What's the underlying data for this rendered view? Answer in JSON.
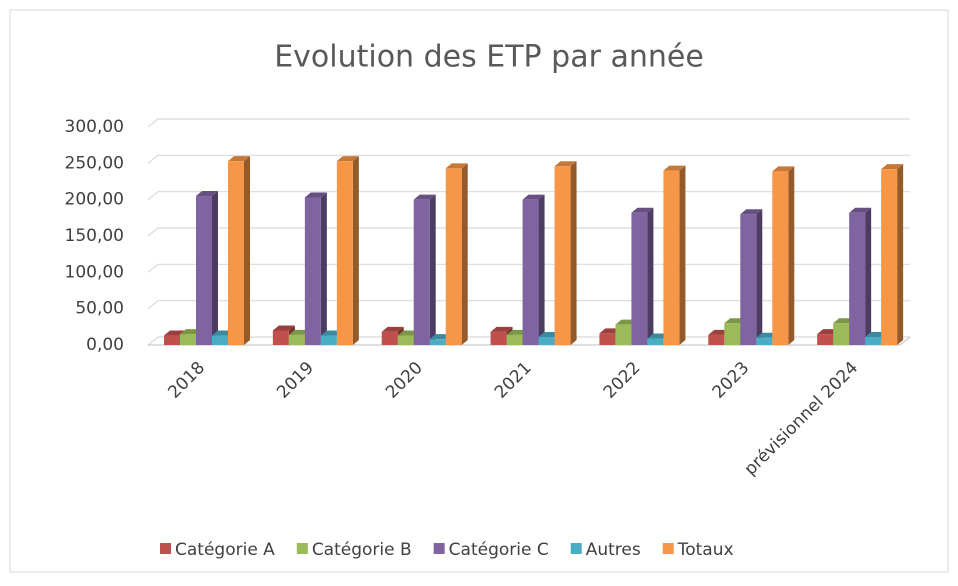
{
  "chart_data": {
    "type": "bar3d",
    "title": "Evolution des ETP par année",
    "categories": [
      "2018",
      "2019",
      "2020",
      "2021",
      "2022",
      "2023",
      "prévisionnel 2024"
    ],
    "series": [
      {
        "name": "Catégorie A",
        "color": "#c0504d",
        "values": [
          13,
          20,
          18,
          18,
          16,
          14,
          15
        ]
      },
      {
        "name": "Catégorie B",
        "color": "#9bbb59",
        "values": [
          15,
          14,
          13,
          14,
          28,
          30,
          30
        ]
      },
      {
        "name": "Catégorie C",
        "color": "#8064a2",
        "values": [
          205,
          203,
          200,
          200,
          182,
          180,
          182
        ]
      },
      {
        "name": "Autres",
        "color": "#4bacc6",
        "values": [
          13,
          13,
          8,
          11,
          9,
          10,
          11
        ]
      },
      {
        "name": "Totaux",
        "color": "#f79646",
        "values": [
          253,
          253,
          243,
          246,
          240,
          239,
          242
        ]
      }
    ],
    "ylim": [
      0,
      300
    ],
    "yticks": [
      {
        "value": 0,
        "label": "0,00"
      },
      {
        "value": 50,
        "label": "50,00"
      },
      {
        "value": 100,
        "label": "100,00"
      },
      {
        "value": 150,
        "label": "150,00"
      },
      {
        "value": 200,
        "label": "200,00"
      },
      {
        "value": 250,
        "label": "250,00"
      },
      {
        "value": 300,
        "label": "300,00"
      }
    ],
    "grid": true,
    "legend": "bottom"
  }
}
